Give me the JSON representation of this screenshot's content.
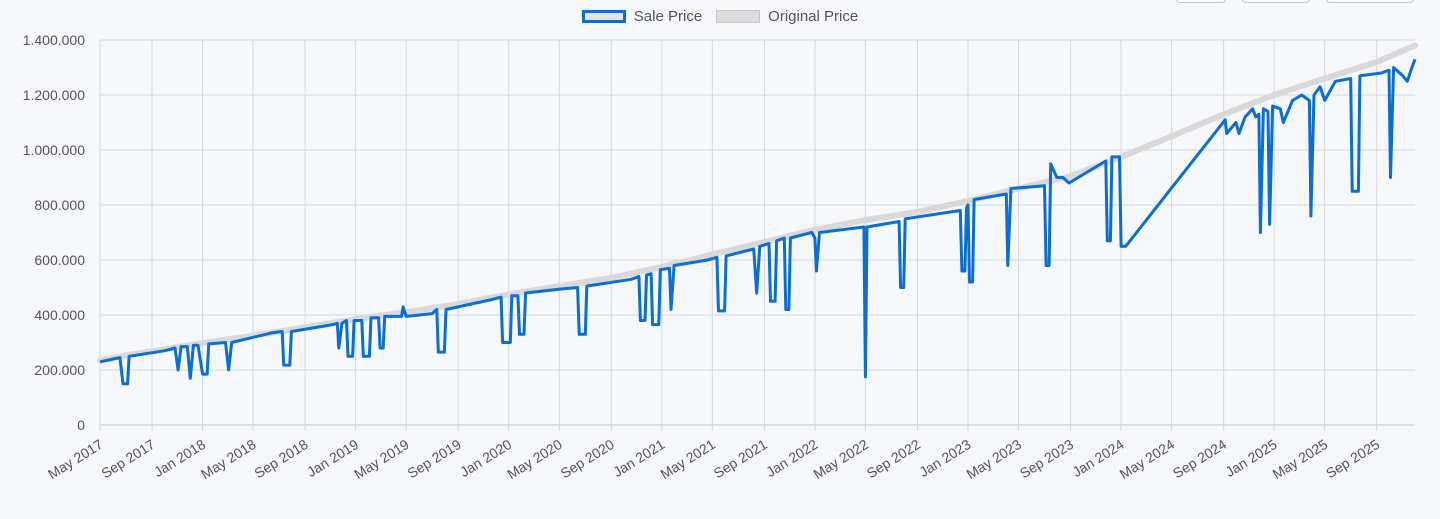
{
  "chart_data": {
    "type": "line",
    "title": "",
    "xlabel": "",
    "ylabel": "",
    "ylim": [
      0,
      1400000
    ],
    "yticks": [
      0,
      200000,
      400000,
      600000,
      800000,
      1000000,
      1200000,
      1400000
    ],
    "ytick_labels": [
      "0",
      "200.000",
      "400.000",
      "600.000",
      "800.000",
      "1.000.000",
      "1.200.000",
      "1.400.000"
    ],
    "xlim": [
      2017.33,
      2025.92
    ],
    "xticks": [
      2017.33,
      2017.67,
      2018.0,
      2018.33,
      2018.67,
      2019.0,
      2019.33,
      2019.67,
      2020.0,
      2020.33,
      2020.67,
      2021.0,
      2021.33,
      2021.67,
      2022.0,
      2022.33,
      2022.67,
      2023.0,
      2023.33,
      2023.67,
      2024.0,
      2024.33,
      2024.67,
      2025.0,
      2025.33,
      2025.67
    ],
    "xtick_labels": [
      "May 2017",
      "Sep 2017",
      "Jan 2018",
      "May 2018",
      "Sep 2018",
      "Jan 2019",
      "May 2019",
      "Sep 2019",
      "Jan 2020",
      "May 2020",
      "Sep 2020",
      "Jan 2021",
      "May 2021",
      "Sep 2021",
      "Jan 2022",
      "May 2022",
      "Sep 2022",
      "Jan 2023",
      "May 2023",
      "Sep 2023",
      "Jan 2024",
      "May 2024",
      "Sep 2024",
      "Jan 2025",
      "May 2025",
      "Sep 2025"
    ],
    "grid": true,
    "legend_position": "top-center",
    "series": [
      {
        "name": "Sale Price",
        "color": "#0b6ed1",
        "points": [
          [
            2017.33,
            230000
          ],
          [
            2017.46,
            245000
          ],
          [
            2017.48,
            150000
          ],
          [
            2017.51,
            150000
          ],
          [
            2017.52,
            250000
          ],
          [
            2017.75,
            270000
          ],
          [
            2017.82,
            280000
          ],
          [
            2017.84,
            200000
          ],
          [
            2017.86,
            285000
          ],
          [
            2017.9,
            285000
          ],
          [
            2017.92,
            170000
          ],
          [
            2017.94,
            290000
          ],
          [
            2017.97,
            290000
          ],
          [
            2018.0,
            185000
          ],
          [
            2018.03,
            185000
          ],
          [
            2018.04,
            295000
          ],
          [
            2018.15,
            300000
          ],
          [
            2018.17,
            200000
          ],
          [
            2018.19,
            300000
          ],
          [
            2018.45,
            335000
          ],
          [
            2018.52,
            340000
          ],
          [
            2018.53,
            218000
          ],
          [
            2018.57,
            218000
          ],
          [
            2018.58,
            340000
          ],
          [
            2018.85,
            365000
          ],
          [
            2018.88,
            370000
          ],
          [
            2018.89,
            280000
          ],
          [
            2018.91,
            370000
          ],
          [
            2018.94,
            380000
          ],
          [
            2018.95,
            250000
          ],
          [
            2018.98,
            250000
          ],
          [
            2018.99,
            380000
          ],
          [
            2019.04,
            380000
          ],
          [
            2019.05,
            250000
          ],
          [
            2019.09,
            250000
          ],
          [
            2019.1,
            390000
          ],
          [
            2019.15,
            390000
          ],
          [
            2019.16,
            280000
          ],
          [
            2019.18,
            280000
          ],
          [
            2019.19,
            395000
          ],
          [
            2019.3,
            395000
          ],
          [
            2019.31,
            430000
          ],
          [
            2019.33,
            395000
          ],
          [
            2019.5,
            405000
          ],
          [
            2019.53,
            420000
          ],
          [
            2019.54,
            265000
          ],
          [
            2019.58,
            265000
          ],
          [
            2019.59,
            420000
          ],
          [
            2019.88,
            455000
          ],
          [
            2019.95,
            465000
          ],
          [
            2019.96,
            300000
          ],
          [
            2020.01,
            300000
          ],
          [
            2020.02,
            470000
          ],
          [
            2020.06,
            470000
          ],
          [
            2020.07,
            330000
          ],
          [
            2020.1,
            330000
          ],
          [
            2020.11,
            480000
          ],
          [
            2020.35,
            495000
          ],
          [
            2020.45,
            500000
          ],
          [
            2020.46,
            330000
          ],
          [
            2020.5,
            330000
          ],
          [
            2020.51,
            505000
          ],
          [
            2020.8,
            530000
          ],
          [
            2020.85,
            540000
          ],
          [
            2020.86,
            380000
          ],
          [
            2020.89,
            380000
          ],
          [
            2020.9,
            545000
          ],
          [
            2020.93,
            550000
          ],
          [
            2020.94,
            365000
          ],
          [
            2020.98,
            365000
          ],
          [
            2020.99,
            565000
          ],
          [
            2021.05,
            570000
          ],
          [
            2021.06,
            420000
          ],
          [
            2021.08,
            580000
          ],
          [
            2021.3,
            600000
          ],
          [
            2021.36,
            610000
          ],
          [
            2021.37,
            415000
          ],
          [
            2021.41,
            415000
          ],
          [
            2021.42,
            615000
          ],
          [
            2021.6,
            640000
          ],
          [
            2021.62,
            480000
          ],
          [
            2021.64,
            650000
          ],
          [
            2021.7,
            660000
          ],
          [
            2021.71,
            450000
          ],
          [
            2021.74,
            450000
          ],
          [
            2021.75,
            670000
          ],
          [
            2021.8,
            680000
          ],
          [
            2021.81,
            420000
          ],
          [
            2021.83,
            420000
          ],
          [
            2021.84,
            680000
          ],
          [
            2021.98,
            700000
          ],
          [
            2022.0,
            680000
          ],
          [
            2022.01,
            560000
          ],
          [
            2022.03,
            700000
          ],
          [
            2022.32,
            720000
          ],
          [
            2022.33,
            175000
          ],
          [
            2022.34,
            720000
          ],
          [
            2022.55,
            740000
          ],
          [
            2022.56,
            500000
          ],
          [
            2022.58,
            500000
          ],
          [
            2022.59,
            750000
          ],
          [
            2022.95,
            780000
          ],
          [
            2022.96,
            560000
          ],
          [
            2022.98,
            560000
          ],
          [
            2022.99,
            790000
          ],
          [
            2023.0,
            800000
          ],
          [
            2023.01,
            520000
          ],
          [
            2023.03,
            520000
          ],
          [
            2023.04,
            820000
          ],
          [
            2023.25,
            840000
          ],
          [
            2023.26,
            580000
          ],
          [
            2023.28,
            860000
          ],
          [
            2023.5,
            870000
          ],
          [
            2023.51,
            580000
          ],
          [
            2023.53,
            580000
          ],
          [
            2023.54,
            950000
          ],
          [
            2023.58,
            900000
          ],
          [
            2023.62,
            900000
          ],
          [
            2023.66,
            880000
          ],
          [
            2023.9,
            960000
          ],
          [
            2023.91,
            670000
          ],
          [
            2023.93,
            670000
          ],
          [
            2023.94,
            975000
          ],
          [
            2023.99,
            975000
          ],
          [
            2024.0,
            650000
          ],
          [
            2024.03,
            650000
          ],
          [
            2024.68,
            1110000
          ],
          [
            2024.69,
            1060000
          ],
          [
            2024.72,
            1080000
          ],
          [
            2024.75,
            1100000
          ],
          [
            2024.77,
            1060000
          ],
          [
            2024.81,
            1120000
          ],
          [
            2024.86,
            1150000
          ],
          [
            2024.88,
            1120000
          ],
          [
            2024.9,
            1130000
          ],
          [
            2024.91,
            700000
          ],
          [
            2024.93,
            1150000
          ],
          [
            2024.96,
            1140000
          ],
          [
            2024.97,
            730000
          ],
          [
            2024.99,
            1160000
          ],
          [
            2025.04,
            1150000
          ],
          [
            2025.06,
            1100000
          ],
          [
            2025.12,
            1180000
          ],
          [
            2025.18,
            1200000
          ],
          [
            2025.23,
            1180000
          ],
          [
            2025.24,
            760000
          ],
          [
            2025.26,
            1200000
          ],
          [
            2025.3,
            1230000
          ],
          [
            2025.33,
            1180000
          ],
          [
            2025.4,
            1250000
          ],
          [
            2025.5,
            1260000
          ],
          [
            2025.51,
            850000
          ],
          [
            2025.55,
            850000
          ],
          [
            2025.56,
            1270000
          ],
          [
            2025.7,
            1280000
          ],
          [
            2025.75,
            1290000
          ],
          [
            2025.76,
            900000
          ],
          [
            2025.78,
            1300000
          ],
          [
            2025.84,
            1270000
          ],
          [
            2025.87,
            1250000
          ],
          [
            2025.9,
            1300000
          ],
          [
            2025.92,
            1330000
          ]
        ]
      },
      {
        "name": "Original Price",
        "color": "#d9d9d9",
        "points": [
          [
            2017.33,
            235000
          ],
          [
            2017.52,
            255000
          ],
          [
            2018.0,
            298000
          ],
          [
            2018.33,
            325000
          ],
          [
            2018.67,
            355000
          ],
          [
            2019.0,
            385000
          ],
          [
            2019.33,
            410000
          ],
          [
            2019.67,
            440000
          ],
          [
            2020.0,
            475000
          ],
          [
            2020.33,
            505000
          ],
          [
            2020.67,
            535000
          ],
          [
            2021.0,
            575000
          ],
          [
            2021.33,
            620000
          ],
          [
            2021.67,
            665000
          ],
          [
            2022.0,
            710000
          ],
          [
            2022.33,
            745000
          ],
          [
            2022.67,
            775000
          ],
          [
            2023.0,
            815000
          ],
          [
            2023.33,
            860000
          ],
          [
            2023.67,
            905000
          ],
          [
            2024.0,
            975000
          ],
          [
            2024.33,
            1050000
          ],
          [
            2024.67,
            1130000
          ],
          [
            2025.0,
            1200000
          ],
          [
            2025.33,
            1260000
          ],
          [
            2025.67,
            1320000
          ],
          [
            2025.92,
            1380000
          ]
        ]
      }
    ]
  },
  "legend": {
    "sale_label": "Sale Price",
    "original_label": "Original Price"
  }
}
